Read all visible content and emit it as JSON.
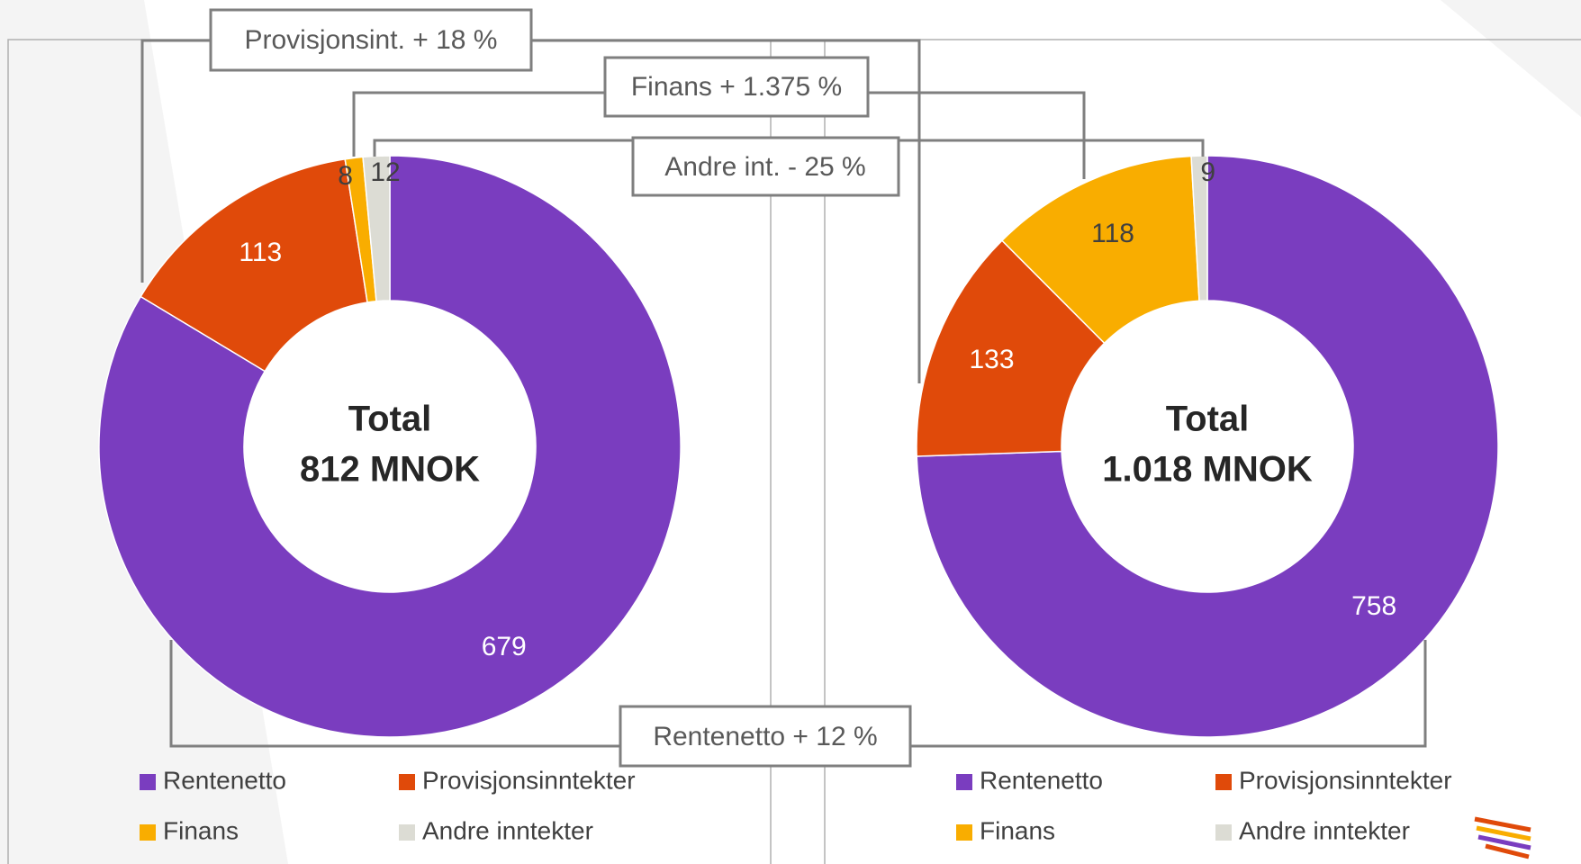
{
  "chart_data": [
    {
      "type": "donut",
      "center_text": [
        "Total",
        "812 MNOK"
      ],
      "categories": [
        "Rentenetto",
        "Provisjonsinntekter",
        "Finans",
        "Andre inntekter"
      ],
      "values": [
        679,
        113,
        8,
        12
      ],
      "colors": [
        "#7a3dbf",
        "#e04a0a",
        "#f9ad00",
        "#dcdcd4"
      ]
    },
    {
      "type": "donut",
      "center_text": [
        "Total",
        "1.018 MNOK"
      ],
      "categories": [
        "Rentenetto",
        "Provisjonsinntekter",
        "Finans",
        "Andre inntekter"
      ],
      "values": [
        758,
        133,
        118,
        9
      ],
      "colors": [
        "#7a3dbf",
        "#e04a0a",
        "#f9ad00",
        "#dcdcd4"
      ]
    }
  ],
  "annotations": [
    "Provisjonsint. + 18 %",
    "Finans + 1.375 %",
    "Andre int. - 25 %",
    "Rentenetto + 12 %"
  ]
}
